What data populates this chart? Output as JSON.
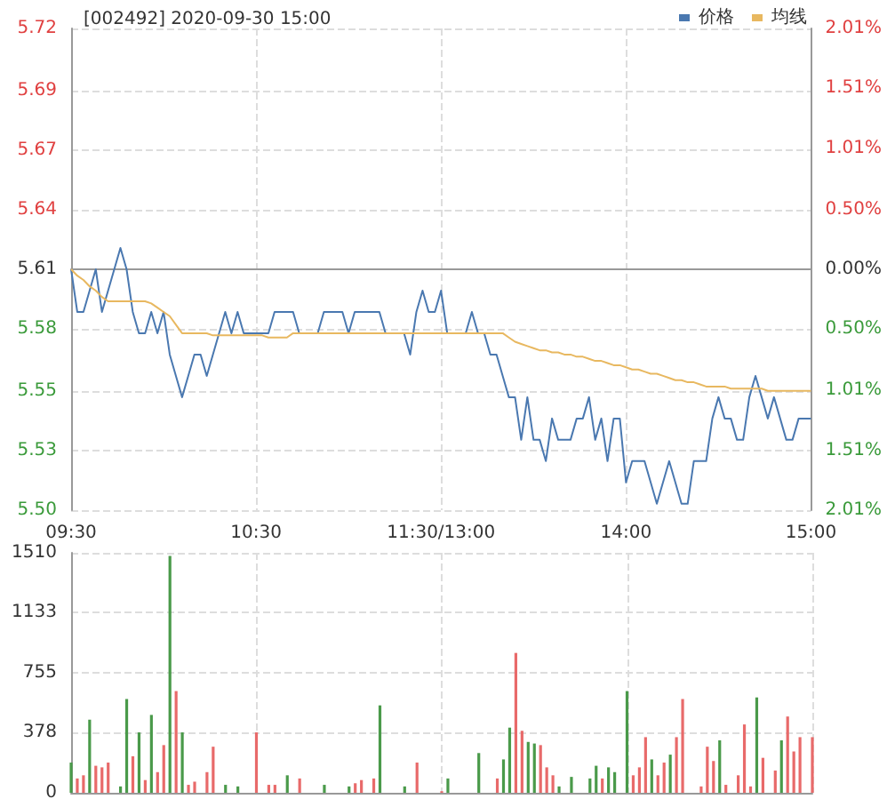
{
  "chart_data": [
    {
      "type": "line",
      "title": "[002492] 2020-09-30 15:00",
      "legend": "top right",
      "marker": "none",
      "grid": true,
      "categories": [
        "09:30",
        null,
        null,
        null,
        null,
        null,
        null,
        null,
        null,
        null,
        null,
        null,
        null,
        null,
        null,
        null,
        null,
        null,
        null,
        null,
        null,
        null,
        null,
        null,
        null,
        null,
        null,
        null,
        null,
        null,
        "10:30",
        null,
        null,
        null,
        null,
        null,
        null,
        null,
        null,
        null,
        null,
        null,
        null,
        null,
        null,
        null,
        null,
        null,
        null,
        null,
        null,
        null,
        null,
        null,
        null,
        null,
        null,
        null,
        null,
        null,
        "11:30/13:00",
        null,
        null,
        null,
        null,
        null,
        null,
        null,
        null,
        null,
        null,
        null,
        null,
        null,
        null,
        null,
        null,
        null,
        null,
        null,
        null,
        null,
        null,
        null,
        null,
        null,
        null,
        null,
        null,
        null,
        "14:00",
        null,
        null,
        null,
        null,
        null,
        null,
        null,
        null,
        null,
        null,
        null,
        null,
        null,
        null,
        null,
        null,
        null,
        null,
        null,
        null,
        null,
        null,
        null,
        null,
        null,
        null,
        null,
        null,
        null,
        "15:00"
      ],
      "ylim": [
        5.497,
        5.723
      ],
      "yticks": [
        {
          "value": 5.497,
          "label": "5.50"
        },
        {
          "value": 5.525,
          "label": "5.53"
        },
        {
          "value": 5.553,
          "label": "5.55"
        },
        {
          "value": 5.582,
          "label": "5.58"
        },
        {
          "value": 5.61,
          "label": "5.61"
        },
        {
          "value": 5.638,
          "label": "5.64"
        },
        {
          "value": 5.666,
          "label": "5.67"
        },
        {
          "value": 5.694,
          "label": "5.69"
        },
        {
          "value": 5.723,
          "label": "5.72"
        }
      ],
      "y2lim": [
        -2.01,
        2.01
      ],
      "y2ticks": [
        {
          "value": -2.01,
          "label": "2.01%"
        },
        {
          "value": -1.51,
          "label": "1.51%"
        },
        {
          "value": -1.01,
          "label": "1.01%"
        },
        {
          "value": -0.5,
          "label": "0.50%"
        },
        {
          "value": 0,
          "label": "0.00%"
        },
        {
          "value": 0.5,
          "label": "0.50%"
        },
        {
          "value": 1.01,
          "label": "1.01%"
        },
        {
          "value": 1.51,
          "label": "1.51%"
        },
        {
          "value": 2.01,
          "label": "2.01%"
        }
      ],
      "series": [
        {
          "name": "价格",
          "color": "#4a78b0",
          "values": [
            5.61,
            5.59,
            5.59,
            5.6,
            5.61,
            5.59,
            5.6,
            5.61,
            5.62,
            5.61,
            5.59,
            5.58,
            5.58,
            5.59,
            5.58,
            5.59,
            5.57,
            5.56,
            5.55,
            5.56,
            5.57,
            5.57,
            5.56,
            5.57,
            5.58,
            5.59,
            5.58,
            5.59,
            5.58,
            5.58,
            5.58,
            5.58,
            5.58,
            5.59,
            5.59,
            5.59,
            5.59,
            5.58,
            5.58,
            5.58,
            5.58,
            5.59,
            5.59,
            5.59,
            5.59,
            5.58,
            5.59,
            5.59,
            5.59,
            5.59,
            5.59,
            5.58,
            5.58,
            5.58,
            5.58,
            5.57,
            5.59,
            5.6,
            5.59,
            5.59,
            5.6,
            5.58,
            5.58,
            5.58,
            5.58,
            5.59,
            5.58,
            5.58,
            5.57,
            5.57,
            5.56,
            5.55,
            5.55,
            5.53,
            5.55,
            5.53,
            5.53,
            5.52,
            5.54,
            5.53,
            5.53,
            5.53,
            5.54,
            5.54,
            5.55,
            5.53,
            5.54,
            5.52,
            5.54,
            5.54,
            5.51,
            5.52,
            5.52,
            5.52,
            5.51,
            5.5,
            5.51,
            5.52,
            5.51,
            5.5,
            5.5,
            5.52,
            5.52,
            5.52,
            5.54,
            5.55,
            5.54,
            5.54,
            5.53,
            5.53,
            5.55,
            5.56,
            5.55,
            5.54,
            5.55,
            5.54,
            5.53,
            5.53,
            5.54,
            5.54,
            5.54
          ]
        },
        {
          "name": "均线",
          "color": "#e8b860",
          "values": [
            5.61,
            5.607,
            5.605,
            5.602,
            5.6,
            5.597,
            5.595,
            5.595,
            5.595,
            5.595,
            5.595,
            5.595,
            5.595,
            5.594,
            5.592,
            5.59,
            5.588,
            5.584,
            5.58,
            5.58,
            5.58,
            5.58,
            5.58,
            5.579,
            5.579,
            5.579,
            5.579,
            5.579,
            5.579,
            5.579,
            5.579,
            5.579,
            5.578,
            5.578,
            5.578,
            5.578,
            5.58,
            5.58,
            5.58,
            5.58,
            5.58,
            5.58,
            5.58,
            5.58,
            5.58,
            5.58,
            5.58,
            5.58,
            5.58,
            5.58,
            5.58,
            5.58,
            5.58,
            5.58,
            5.58,
            5.58,
            5.58,
            5.58,
            5.58,
            5.58,
            5.58,
            5.58,
            5.58,
            5.58,
            5.58,
            5.58,
            5.58,
            5.58,
            5.58,
            5.58,
            5.58,
            5.578,
            5.576,
            5.575,
            5.574,
            5.573,
            5.572,
            5.572,
            5.571,
            5.571,
            5.57,
            5.57,
            5.569,
            5.569,
            5.568,
            5.567,
            5.567,
            5.566,
            5.565,
            5.565,
            5.564,
            5.563,
            5.563,
            5.562,
            5.561,
            5.561,
            5.56,
            5.559,
            5.558,
            5.558,
            5.557,
            5.557,
            5.556,
            5.555,
            5.555,
            5.555,
            5.555,
            5.554,
            5.554,
            5.554,
            5.554,
            5.554,
            5.554,
            5.553,
            5.553,
            5.553,
            5.553,
            5.553,
            5.553,
            5.553,
            5.553
          ]
        }
      ]
    },
    {
      "type": "bar",
      "grid": true,
      "tick_labels": "y",
      "categories": [
        null,
        null,
        null,
        null,
        null,
        null,
        null,
        null,
        null,
        null,
        null,
        null,
        null,
        null,
        null,
        null,
        null,
        null,
        null,
        null,
        null,
        null,
        null,
        null,
        null,
        null,
        null,
        null,
        null,
        null,
        null,
        null,
        null,
        null,
        null,
        null,
        null,
        null,
        null,
        null,
        null,
        null,
        null,
        null,
        null,
        null,
        null,
        null,
        null,
        null,
        null,
        null,
        null,
        null,
        null,
        null,
        null,
        null,
        null,
        null,
        null,
        null,
        null,
        null,
        null,
        null,
        null,
        null,
        null,
        null,
        null,
        null,
        null,
        null,
        null,
        null,
        null,
        null,
        null,
        null,
        null,
        null,
        null,
        null,
        null,
        null,
        null,
        null,
        null,
        null,
        null,
        null,
        null,
        null,
        null,
        null,
        null,
        null,
        null,
        null,
        null,
        null,
        null,
        null,
        null,
        null,
        null,
        null,
        null,
        null,
        null,
        null,
        null,
        null,
        null,
        null,
        null,
        null,
        null,
        null,
        null
      ],
      "ylim": [
        0,
        1510
      ],
      "yticks": [
        0,
        378,
        755,
        1133,
        1510
      ],
      "series": [
        {
          "color": "#e86a6a",
          "values": [
            null,
            90,
            110,
            null,
            170,
            160,
            190,
            null,
            null,
            null,
            230,
            null,
            80,
            null,
            130,
            300,
            null,
            640,
            null,
            50,
            70,
            null,
            130,
            290,
            null,
            null,
            null,
            null,
            null,
            null,
            380,
            null,
            50,
            50,
            null,
            null,
            null,
            90,
            null,
            null,
            null,
            null,
            null,
            null,
            null,
            null,
            60,
            80,
            null,
            90,
            null,
            null,
            null,
            null,
            null,
            null,
            190,
            null,
            null,
            null,
            10,
            null,
            null,
            null,
            null,
            null,
            null,
            null,
            null,
            90,
            null,
            null,
            880,
            390,
            null,
            null,
            300,
            160,
            110,
            null,
            null,
            null,
            null,
            null,
            null,
            null,
            90,
            null,
            null,
            null,
            null,
            110,
            160,
            350,
            null,
            110,
            190,
            null,
            350,
            590,
            null,
            null,
            40,
            290,
            200,
            null,
            50,
            null,
            110,
            430,
            40,
            null,
            220,
            null,
            140,
            null,
            480,
            260,
            350,
            null,
            350
          ]
        },
        {
          "color": "#4a9a4a",
          "values": [
            190,
            null,
            null,
            460,
            null,
            null,
            null,
            null,
            40,
            590,
            null,
            380,
            null,
            490,
            null,
            null,
            1490,
            null,
            380,
            null,
            null,
            null,
            null,
            null,
            null,
            50,
            null,
            40,
            null,
            null,
            null,
            null,
            null,
            null,
            null,
            110,
            null,
            null,
            null,
            null,
            null,
            50,
            null,
            null,
            null,
            40,
            null,
            null,
            null,
            null,
            550,
            null,
            null,
            null,
            40,
            null,
            null,
            null,
            null,
            null,
            null,
            90,
            null,
            null,
            null,
            null,
            250,
            null,
            null,
            null,
            210,
            410,
            null,
            null,
            320,
            310,
            null,
            null,
            null,
            40,
            null,
            100,
            null,
            null,
            90,
            170,
            null,
            160,
            130,
            null,
            640,
            null,
            null,
            null,
            210,
            null,
            null,
            240,
            null,
            null,
            null,
            null,
            null,
            null,
            null,
            330,
            null,
            null,
            null,
            null,
            null,
            600,
            null,
            null,
            null,
            330,
            null,
            null,
            null,
            null,
            null
          ]
        }
      ]
    }
  ]
}
